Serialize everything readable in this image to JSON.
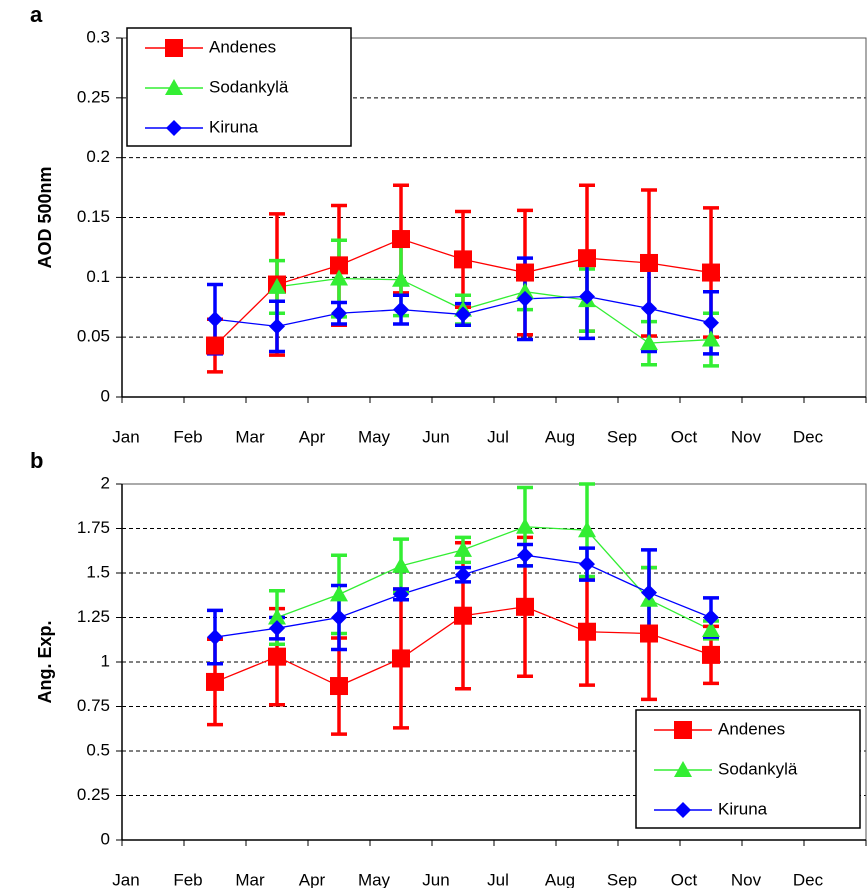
{
  "chart_data": [
    {
      "type": "line",
      "label": "a",
      "y_label": "AOD 500nm",
      "categories": [
        "Jan",
        "Feb",
        "Mar",
        "Apr",
        "May",
        "Jun",
        "Jul",
        "Aug",
        "Sep",
        "Oct",
        "Nov",
        "Dec"
      ],
      "ylim": [
        0,
        0.3
      ],
      "yticks": [
        0,
        0.05,
        0.1,
        0.15,
        0.2,
        0.25,
        0.3
      ],
      "grid": true,
      "legend": "top-left",
      "series": [
        {
          "name": "Andenes",
          "color": "#ff0000",
          "marker": "square",
          "values": [
            null,
            0.043,
            0.094,
            0.11,
            0.132,
            0.115,
            0.104,
            0.116,
            0.112,
            0.104,
            null,
            null
          ],
          "errors": [
            null,
            0.022,
            0.059,
            0.05,
            0.045,
            0.04,
            0.052,
            0.061,
            0.061,
            0.054,
            null,
            null
          ]
        },
        {
          "name": "Sodankylä",
          "color": "#33ee33",
          "marker": "triangle",
          "values": [
            null,
            null,
            0.092,
            0.099,
            0.098,
            0.073,
            0.088,
            0.081,
            0.045,
            0.048,
            null,
            null
          ],
          "errors": [
            null,
            null,
            0.022,
            0.032,
            0.03,
            0.012,
            0.015,
            0.026,
            0.018,
            0.022,
            null,
            null
          ]
        },
        {
          "name": "Kiruna",
          "color": "#0000ff",
          "marker": "diamond",
          "values": [
            null,
            0.065,
            0.059,
            0.07,
            0.073,
            0.069,
            0.082,
            0.084,
            0.074,
            0.062,
            null,
            null
          ],
          "errors": [
            null,
            0.029,
            0.021,
            0.009,
            0.012,
            0.009,
            0.034,
            0.035,
            0.036,
            0.026,
            null,
            null
          ]
        }
      ]
    },
    {
      "type": "line",
      "label": "b",
      "y_label": "Ang. Exp.",
      "categories": [
        "Jan",
        "Feb",
        "Mar",
        "Apr",
        "May",
        "Jun",
        "Jul",
        "Aug",
        "Sep",
        "Oct",
        "Nov",
        "Dec"
      ],
      "ylim": [
        0,
        2
      ],
      "yticks": [
        0,
        0.25,
        0.5,
        0.75,
        1,
        1.25,
        1.5,
        1.75,
        2
      ],
      "grid": true,
      "legend": "bottom-right",
      "series": [
        {
          "name": "Andenes",
          "color": "#ff0000",
          "marker": "square",
          "values": [
            null,
            0.888,
            1.03,
            0.865,
            1.02,
            1.26,
            1.31,
            1.17,
            1.16,
            1.04,
            null,
            null
          ],
          "errors": [
            null,
            0.24,
            0.27,
            0.27,
            0.39,
            0.41,
            0.39,
            0.3,
            0.37,
            0.16,
            null,
            null
          ]
        },
        {
          "name": "Sodankylä",
          "color": "#33ee33",
          "marker": "triangle",
          "values": [
            null,
            null,
            1.25,
            1.38,
            1.54,
            1.63,
            1.76,
            1.74,
            1.35,
            1.18,
            null,
            null
          ],
          "errors": [
            null,
            null,
            0.15,
            0.22,
            0.15,
            0.07,
            0.22,
            0.26,
            0.18,
            0.05,
            null,
            null
          ]
        },
        {
          "name": "Kiruna",
          "color": "#0000ff",
          "marker": "diamond",
          "values": [
            null,
            1.14,
            1.19,
            1.25,
            1.38,
            1.49,
            1.6,
            1.55,
            1.39,
            1.25,
            null,
            null
          ],
          "errors": [
            null,
            0.15,
            0.06,
            0.18,
            0.03,
            0.04,
            0.06,
            0.09,
            0.24,
            0.11,
            null,
            null
          ]
        }
      ]
    }
  ]
}
